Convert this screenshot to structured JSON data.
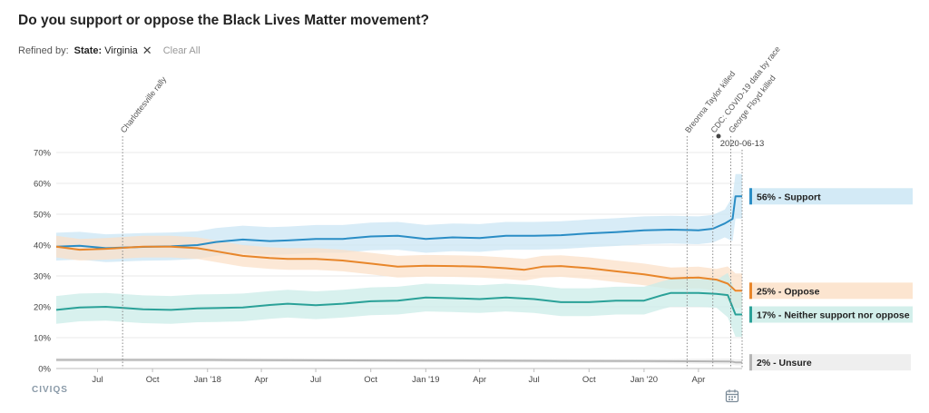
{
  "title": "Do you support or oppose the Black Lives Matter movement?",
  "filter": {
    "refined_by": "Refined by:",
    "chip_key": "State:",
    "chip_value": "Virginia",
    "clear_all": "Clear All"
  },
  "brand": "CIVIQS",
  "icons": {
    "close": "close-icon",
    "calendar": "calendar-icon"
  },
  "chart_data": {
    "type": "line",
    "x_range": [
      "2017-04-23",
      "2020-06-13"
    ],
    "ylim": [
      0,
      70
    ],
    "y_ticks": [
      0,
      10,
      20,
      30,
      40,
      50,
      60,
      70
    ],
    "y_tick_labels": [
      "0%",
      "10%",
      "20%",
      "30%",
      "40%",
      "50%",
      "60%",
      "70%"
    ],
    "x_ticks": [
      {
        "date": "2017-07-01",
        "label": "Jul"
      },
      {
        "date": "2017-10-01",
        "label": "Oct"
      },
      {
        "date": "2018-01-01",
        "label": "Jan '18"
      },
      {
        "date": "2018-04-01",
        "label": "Apr"
      },
      {
        "date": "2018-07-01",
        "label": "Jul"
      },
      {
        "date": "2018-10-01",
        "label": "Oct"
      },
      {
        "date": "2019-01-01",
        "label": "Jan '19"
      },
      {
        "date": "2019-04-01",
        "label": "Apr"
      },
      {
        "date": "2019-07-01",
        "label": "Jul"
      },
      {
        "date": "2019-10-01",
        "label": "Oct"
      },
      {
        "date": "2020-01-01",
        "label": "Jan '20"
      },
      {
        "date": "2020-04-01",
        "label": "Apr"
      }
    ],
    "grid": true,
    "events": [
      {
        "date": "2017-08-12",
        "label": "Charlottesville rally"
      },
      {
        "date": "2020-03-13",
        "label": "Breonna Taylor killed"
      },
      {
        "date": "2020-04-25",
        "label": "CDC: COVID-19 data by race"
      },
      {
        "date": "2020-05-25",
        "label": "George Floyd killed"
      }
    ],
    "current_date_label": "2020-06-13",
    "series": [
      {
        "name": "Support",
        "end_label": "56% - Support",
        "color": "#2a8dc5",
        "band_color": "#cbe6f4",
        "points": [
          [
            "2017-04-23",
            39.5
          ],
          [
            "2017-06-01",
            39.8
          ],
          [
            "2017-07-15",
            39.0
          ],
          [
            "2017-09-15",
            39.4
          ],
          [
            "2017-11-01",
            39.6
          ],
          [
            "2017-12-15",
            40.0
          ],
          [
            "2018-01-15",
            41.0
          ],
          [
            "2018-03-01",
            41.8
          ],
          [
            "2018-04-15",
            41.3
          ],
          [
            "2018-05-15",
            41.5
          ],
          [
            "2018-07-01",
            42.0
          ],
          [
            "2018-08-15",
            42.0
          ],
          [
            "2018-10-01",
            42.8
          ],
          [
            "2018-11-15",
            43.0
          ],
          [
            "2019-01-01",
            42.0
          ],
          [
            "2019-02-15",
            42.5
          ],
          [
            "2019-04-01",
            42.3
          ],
          [
            "2019-05-15",
            43.0
          ],
          [
            "2019-07-01",
            43.0
          ],
          [
            "2019-08-15",
            43.2
          ],
          [
            "2019-10-01",
            43.8
          ],
          [
            "2019-11-15",
            44.2
          ],
          [
            "2020-01-01",
            44.8
          ],
          [
            "2020-02-15",
            45.0
          ],
          [
            "2020-04-01",
            44.8
          ],
          [
            "2020-04-25",
            45.3
          ],
          [
            "2020-05-15",
            47.0
          ],
          [
            "2020-05-28",
            48.5
          ],
          [
            "2020-06-02",
            55.8
          ],
          [
            "2020-06-13",
            55.8
          ]
        ]
      },
      {
        "name": "Oppose",
        "end_label": "25% - Oppose",
        "color": "#e8862a",
        "band_color": "#fbe0c8",
        "points": [
          [
            "2017-04-23",
            39.5
          ],
          [
            "2017-06-01",
            38.5
          ],
          [
            "2017-07-15",
            38.8
          ],
          [
            "2017-09-15",
            39.5
          ],
          [
            "2017-11-01",
            39.5
          ],
          [
            "2017-12-15",
            39.0
          ],
          [
            "2018-01-15",
            38.0
          ],
          [
            "2018-03-01",
            36.5
          ],
          [
            "2018-04-15",
            35.8
          ],
          [
            "2018-05-15",
            35.5
          ],
          [
            "2018-07-01",
            35.5
          ],
          [
            "2018-08-15",
            35.0
          ],
          [
            "2018-10-01",
            34.0
          ],
          [
            "2018-11-15",
            33.0
          ],
          [
            "2019-01-01",
            33.3
          ],
          [
            "2019-02-15",
            33.2
          ],
          [
            "2019-04-01",
            33.0
          ],
          [
            "2019-05-15",
            32.5
          ],
          [
            "2019-06-15",
            32.0
          ],
          [
            "2019-07-15",
            33.0
          ],
          [
            "2019-08-15",
            33.2
          ],
          [
            "2019-10-01",
            32.5
          ],
          [
            "2019-11-15",
            31.5
          ],
          [
            "2020-01-01",
            30.5
          ],
          [
            "2020-02-15",
            29.2
          ],
          [
            "2020-04-01",
            29.5
          ],
          [
            "2020-05-01",
            28.8
          ],
          [
            "2020-05-20",
            27.5
          ],
          [
            "2020-06-02",
            25.2
          ],
          [
            "2020-06-13",
            25.2
          ]
        ]
      },
      {
        "name": "Neither support nor oppose",
        "end_label": "17% - Neither support nor oppose",
        "color": "#2aa198",
        "band_color": "#cbece8",
        "points": [
          [
            "2017-04-23",
            19.0
          ],
          [
            "2017-06-01",
            19.8
          ],
          [
            "2017-07-15",
            20.0
          ],
          [
            "2017-09-15",
            19.2
          ],
          [
            "2017-11-01",
            19.0
          ],
          [
            "2017-12-15",
            19.5
          ],
          [
            "2018-01-15",
            19.6
          ],
          [
            "2018-03-01",
            19.8
          ],
          [
            "2018-04-15",
            20.6
          ],
          [
            "2018-05-15",
            21.0
          ],
          [
            "2018-07-01",
            20.5
          ],
          [
            "2018-08-15",
            21.0
          ],
          [
            "2018-10-01",
            21.8
          ],
          [
            "2018-11-15",
            22.0
          ],
          [
            "2019-01-01",
            23.0
          ],
          [
            "2019-02-15",
            22.8
          ],
          [
            "2019-04-01",
            22.5
          ],
          [
            "2019-05-15",
            23.0
          ],
          [
            "2019-07-01",
            22.5
          ],
          [
            "2019-08-15",
            21.5
          ],
          [
            "2019-10-01",
            21.5
          ],
          [
            "2019-11-15",
            22.0
          ],
          [
            "2020-01-01",
            22.0
          ],
          [
            "2020-02-01",
            23.8
          ],
          [
            "2020-02-15",
            24.5
          ],
          [
            "2020-04-01",
            24.5
          ],
          [
            "2020-05-01",
            24.2
          ],
          [
            "2020-05-20",
            23.8
          ],
          [
            "2020-06-02",
            17.5
          ],
          [
            "2020-06-13",
            17.5
          ]
        ]
      },
      {
        "name": "Unsure",
        "end_label": "2% - Unsure",
        "color": "#b5b5b5",
        "band_color": "#ececec",
        "points": [
          [
            "2017-04-23",
            2.8
          ],
          [
            "2018-01-01",
            2.8
          ],
          [
            "2019-01-01",
            2.6
          ],
          [
            "2020-01-01",
            2.4
          ],
          [
            "2020-05-25",
            2.3
          ],
          [
            "2020-06-02",
            2.0
          ],
          [
            "2020-06-13",
            2.0
          ]
        ]
      }
    ]
  }
}
